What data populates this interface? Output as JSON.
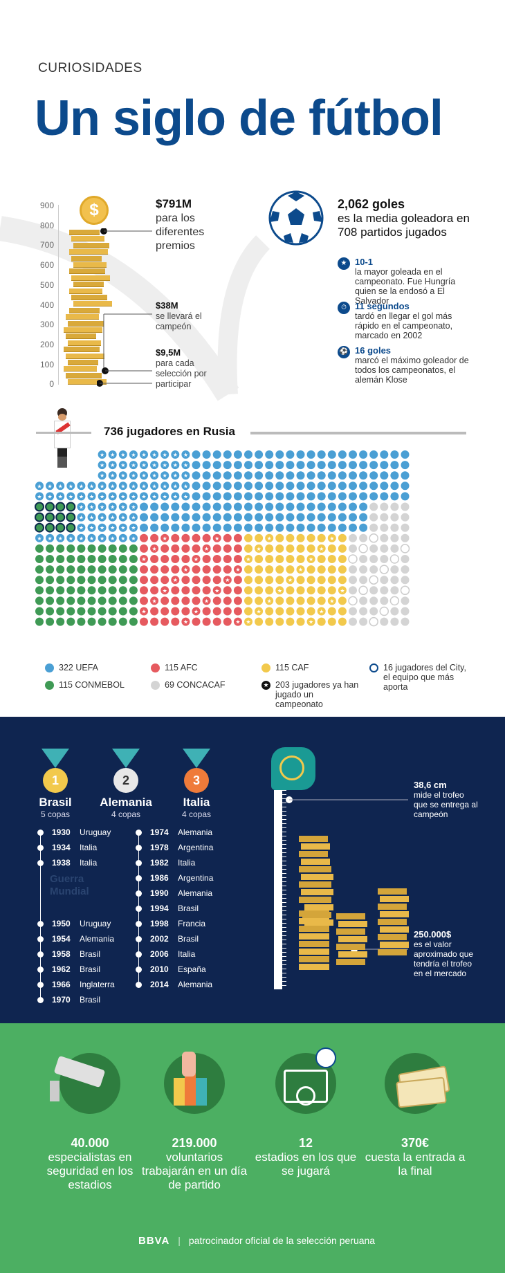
{
  "header": {
    "kicker": "CURIOSIDADES",
    "title": "Un siglo de fútbol"
  },
  "prizes": {
    "y_ticks": [
      "900",
      "800",
      "700",
      "600",
      "500",
      "400",
      "300",
      "200",
      "100",
      "0"
    ],
    "coin_symbol": "$",
    "total": {
      "value": "$791M",
      "text": "para los diferentes premios"
    },
    "champion": {
      "value": "$38M",
      "text": "se llevará el campeón"
    },
    "participation": {
      "value": "$9,5M",
      "text": "para cada selección por participar"
    }
  },
  "goals": {
    "headline_value": "2,062 goles",
    "headline_text": "es la media goleadora en 708 partidos jugados",
    "facts": [
      {
        "icon": "star-icon",
        "glyph": "★",
        "value": "10-1",
        "text": "la mayor goleada en el campeonato. Fue Hungría quien se la endosó a El Salvador"
      },
      {
        "icon": "clock-icon",
        "glyph": "⏱",
        "value": "11 segundos",
        "text": "tardó en llegar el gol más rápido en el campeonato, marcado en 2002"
      },
      {
        "icon": "ball-icon",
        "glyph": "⚽",
        "value": "16 goles",
        "text": "marcó el máximo goleador de todos los campeonatos, el alemán Klose"
      }
    ]
  },
  "players": {
    "title": "736 jugadores en Rusia",
    "legend": [
      {
        "label": "322 UEFA",
        "color": "#4a9fd4"
      },
      {
        "label": "115 AFC",
        "color": "#e65a5f"
      },
      {
        "label": "115 CAF",
        "color": "#f2c94c"
      },
      {
        "label": "16 jugadores del City, el equipo que más aporta",
        "color": "#0c4a8c"
      },
      {
        "label": "115 CONMEBOL",
        "color": "#3f9a55"
      },
      {
        "label": "69 CONCACAF",
        "color": "#d4d4d4"
      },
      {
        "label": "203 jugadores ya han jugado un campeonato",
        "color": "#111111"
      }
    ]
  },
  "champions": {
    "columns": [
      {
        "rank": "1",
        "country": "Brasil",
        "cups": "5 copas",
        "medal_color": "#f2c94c",
        "years": [
          [
            "1930",
            "Uruguay"
          ],
          [
            "1934",
            "Italia"
          ],
          [
            "1938",
            "Italia"
          ],
          [
            "1950",
            "Uruguay"
          ],
          [
            "1954",
            "Alemania"
          ],
          [
            "1958",
            "Brasil"
          ],
          [
            "1962",
            "Brasil"
          ],
          [
            "1966",
            "Inglaterra"
          ],
          [
            "1970",
            "Brasil"
          ]
        ]
      },
      {
        "rank": "2",
        "country": "Alemania",
        "cups": "4 copas",
        "medal_color": "#e8e8e8",
        "years": [
          [
            "1974",
            "Alemania"
          ],
          [
            "1978",
            "Argentina"
          ],
          [
            "1982",
            "Italia"
          ],
          [
            "1986",
            "Argentina"
          ],
          [
            "1990",
            "Alemania"
          ],
          [
            "1994",
            "Brasil"
          ],
          [
            "1998",
            "Francia"
          ],
          [
            "2002",
            "Brasil"
          ],
          [
            "2006",
            "Italia"
          ],
          [
            "2010",
            "España"
          ],
          [
            "2014",
            "Alemania"
          ]
        ]
      },
      {
        "rank": "3",
        "country": "Italia",
        "cups": "4 copas",
        "medal_color": "#ef7b3a"
      }
    ],
    "war_label": "Guerra Mundial",
    "trophy_height": {
      "value": "38,6 cm",
      "text": "mide el trofeo que se entrega al campeón"
    },
    "trophy_value": {
      "value": "250.000$",
      "text": "es el valor aproximado que tendría el trofeo en el mercado"
    }
  },
  "stats": [
    {
      "icon": "security-camera-icon",
      "value": "40.000",
      "text": "especialistas en seguridad en los estadios"
    },
    {
      "icon": "raised-hands-icon",
      "value": "219.000",
      "text": "voluntarios trabajarán en un día de partido"
    },
    {
      "icon": "stadium-icon",
      "value": "12",
      "text": "estadios en los que se jugará"
    },
    {
      "icon": "ticket-icon",
      "value": "370€",
      "text": "cuesta la entrada a la final"
    }
  ],
  "footer": {
    "brand": "BBVA",
    "text": "patrocinador oficial de la selección peruana"
  }
}
